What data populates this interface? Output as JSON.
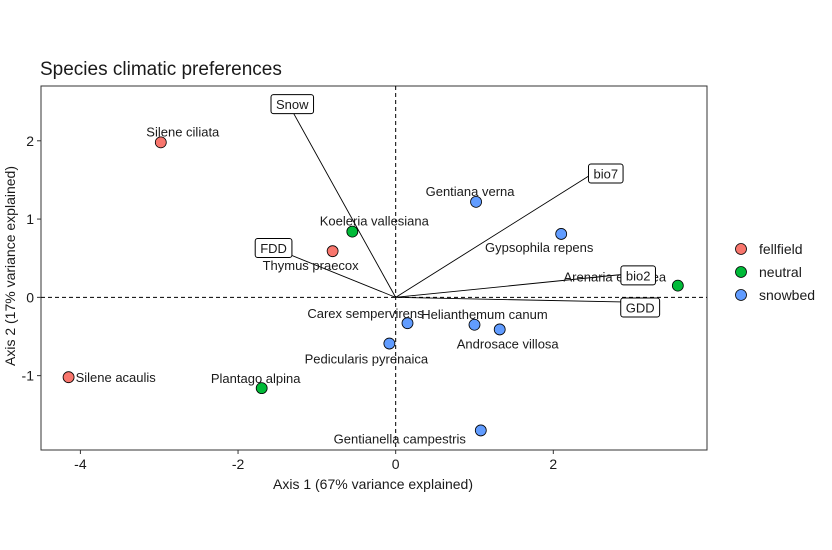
{
  "chart_data": {
    "type": "scatter",
    "title": "Species climatic preferences",
    "xlabel": "Axis 1 (67% variance explained)",
    "ylabel": "Axis 2 (17% variance explained)",
    "xlim": [
      -4.5,
      3.95
    ],
    "ylim": [
      -1.95,
      2.7
    ],
    "xticks": [
      -4,
      -2,
      0,
      2
    ],
    "yticks": [
      -1,
      0,
      1,
      2
    ],
    "grid": false,
    "legend_position": "right",
    "legend": [
      {
        "label": "fellfield",
        "color": "#F8766D"
      },
      {
        "label": "neutral",
        "color": "#00BA38"
      },
      {
        "label": "snowbed",
        "color": "#619CFF"
      }
    ],
    "points": [
      {
        "label": "Silene ciliata",
        "x": -2.98,
        "y": 1.98,
        "group": "fellfield"
      },
      {
        "label": "Silene acaulis",
        "x": -4.15,
        "y": -1.02,
        "group": "fellfield"
      },
      {
        "label": "Thymus praecox",
        "x": -0.8,
        "y": 0.59,
        "group": "fellfield"
      },
      {
        "label": "Koeleria vallesiana",
        "x": -0.55,
        "y": 0.84,
        "group": "neutral"
      },
      {
        "label": "Plantago alpina",
        "x": -1.7,
        "y": -1.16,
        "group": "neutral"
      },
      {
        "label": "Arenaria erinacea",
        "x": 3.58,
        "y": 0.15,
        "group": "neutral"
      },
      {
        "label": "Gentiana verna",
        "x": 1.02,
        "y": 1.22,
        "group": "snowbed"
      },
      {
        "label": "Gypsophila repens",
        "x": 2.1,
        "y": 0.81,
        "group": "snowbed"
      },
      {
        "label": "Carex sempervirens",
        "x": 0.15,
        "y": -0.33,
        "group": "snowbed"
      },
      {
        "label": "Helianthemum canum",
        "x": 1.0,
        "y": -0.35,
        "group": "snowbed"
      },
      {
        "label": "Androsace villosa",
        "x": 1.32,
        "y": -0.41,
        "group": "snowbed"
      },
      {
        "label": "Pedicularis pyrenaica",
        "x": -0.08,
        "y": -0.59,
        "group": "snowbed"
      },
      {
        "label": "Gentianella campestris",
        "x": 1.08,
        "y": -1.7,
        "group": "snowbed"
      }
    ],
    "vectors": [
      {
        "label": "Snow",
        "x": -1.35,
        "y": 2.45
      },
      {
        "label": "bio7",
        "x": 2.45,
        "y": 1.55
      },
      {
        "label": "FDD",
        "x": -1.6,
        "y": 0.65
      },
      {
        "label": "bio2",
        "x": 2.95,
        "y": 0.3
      },
      {
        "label": "GDD",
        "x": 2.95,
        "y": -0.06
      }
    ]
  }
}
